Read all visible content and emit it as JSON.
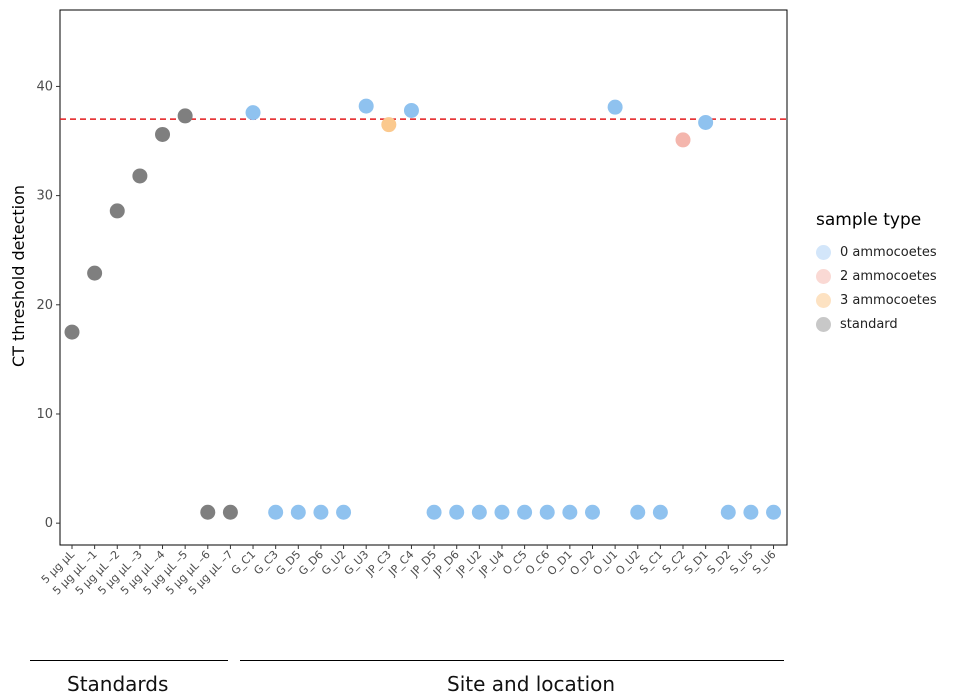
{
  "chart_data": {
    "type": "scatter",
    "title": "",
    "xlabel": "",
    "ylabel": "CT threshold detection",
    "ylim": [
      -2,
      47
    ],
    "yticks": [
      0,
      10,
      20,
      30,
      40
    ],
    "threshold": 37,
    "threshold_color": "#e31a1c",
    "grid": false,
    "legend_title": "sample type",
    "legend_position": "right",
    "categories": [
      "5 µg µL",
      "5 µg µL –1",
      "5 µg µL –2",
      "5 µg µL –3",
      "5 µg µL –4",
      "5 µg µL –5",
      "5 µg µL –6",
      "5 µg µL –7",
      "G_C1",
      "G_C3",
      "G_D5",
      "G_D6",
      "G_U2",
      "G_U3",
      "JP_C3",
      "JP_C4",
      "JP_D5",
      "JP_D6",
      "JP_U2",
      "JP_U4",
      "O_C5",
      "O_C6",
      "O_D1",
      "O_D2",
      "O_U1",
      "O_U2",
      "S_C1",
      "S_C2",
      "S_D1",
      "S_D2",
      "S_U5",
      "S_U6"
    ],
    "series": [
      {
        "name": "0 ammocoetes",
        "color": "#8fc2ef",
        "points": [
          {
            "x": "G_C1",
            "y": 37.6
          },
          {
            "x": "G_C3",
            "y": 1
          },
          {
            "x": "G_D5",
            "y": 1
          },
          {
            "x": "G_D6",
            "y": 1
          },
          {
            "x": "G_U2",
            "y": 1
          },
          {
            "x": "G_U3",
            "y": 38.2
          },
          {
            "x": "JP_C4",
            "y": 37.8
          },
          {
            "x": "JP_D5",
            "y": 1
          },
          {
            "x": "JP_D6",
            "y": 1
          },
          {
            "x": "JP_U2",
            "y": 1
          },
          {
            "x": "JP_U4",
            "y": 1
          },
          {
            "x": "O_C5",
            "y": 1
          },
          {
            "x": "O_C6",
            "y": 1
          },
          {
            "x": "O_D1",
            "y": 1
          },
          {
            "x": "O_D2",
            "y": 1
          },
          {
            "x": "O_U1",
            "y": 38.1
          },
          {
            "x": "O_U2",
            "y": 1
          },
          {
            "x": "S_C1",
            "y": 1
          },
          {
            "x": "S_D1",
            "y": 36.7
          },
          {
            "x": "S_D2",
            "y": 1
          },
          {
            "x": "S_U5",
            "y": 1
          },
          {
            "x": "S_U6",
            "y": 1
          }
        ]
      },
      {
        "name": "2 ammocoetes",
        "color": "#f4b6ad",
        "points": [
          {
            "x": "S_C2",
            "y": 35.1
          }
        ]
      },
      {
        "name": "3 ammocoetes",
        "color": "#fbc98e",
        "points": [
          {
            "x": "JP_C3",
            "y": 36.5
          }
        ]
      },
      {
        "name": "standard",
        "color": "#7f7f7f",
        "points": [
          {
            "x": "5 µg µL",
            "y": 17.5
          },
          {
            "x": "5 µg µL –1",
            "y": 22.9
          },
          {
            "x": "5 µg µL –2",
            "y": 28.6
          },
          {
            "x": "5 µg µL –3",
            "y": 31.8
          },
          {
            "x": "5 µg µL –4",
            "y": 35.6
          },
          {
            "x": "5 µg µL –5",
            "y": 37.3
          },
          {
            "x": "5 µg µL –6",
            "y": 1
          },
          {
            "x": "5 µg µL –7",
            "y": 1
          }
        ]
      }
    ],
    "groups": [
      {
        "label": "Standards",
        "from": 0,
        "to": 7
      },
      {
        "label": "Site and location",
        "from": 8,
        "to": 31
      }
    ]
  },
  "legend_colors": {
    "0 ammocoetes": "#d3e6fa",
    "2 ammocoetes": "#fad9d4",
    "3 ammocoetes": "#fde2c2",
    "standard": "#c8c8c8"
  }
}
